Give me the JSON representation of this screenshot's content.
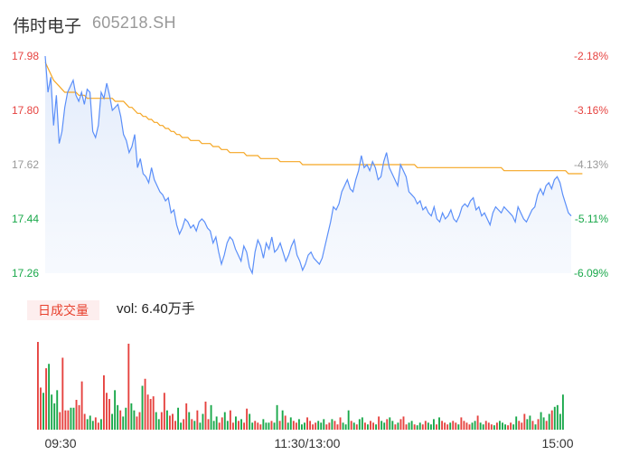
{
  "header": {
    "name": "伟时电子",
    "code": "605218.SH"
  },
  "volume_panel": {
    "tab_label": "日成交量",
    "vol_text": "vol: 6.40万手"
  },
  "colors": {
    "price": "#5b8ff9",
    "avg": "#f5a623",
    "up": "#e64340",
    "down": "#19a84a",
    "label_up": "#e64340",
    "label_down": "#19a84a",
    "label_mid": "#999999"
  },
  "chart_data": [
    {
      "type": "line",
      "y_ticks_left": [
        "17.98",
        "17.80",
        "17.62",
        "17.44",
        "17.26"
      ],
      "y_ticks_right": [
        "-2.18%",
        "-3.16%",
        "-4.13%",
        "-5.11%",
        "-6.09%"
      ],
      "ylim": [
        17.26,
        17.98
      ],
      "x_ticks": [
        "09:30",
        "11:30/13:00",
        "15:00"
      ],
      "series": [
        {
          "key": "price",
          "values": [
            17.98,
            17.86,
            17.91,
            17.75,
            17.85,
            17.69,
            17.73,
            17.81,
            17.86,
            17.88,
            17.9,
            17.85,
            17.83,
            17.86,
            17.82,
            17.87,
            17.86,
            17.73,
            17.71,
            17.75,
            17.86,
            17.84,
            17.89,
            17.85,
            17.8,
            17.81,
            17.82,
            17.78,
            17.72,
            17.7,
            17.66,
            17.68,
            17.72,
            17.61,
            17.64,
            17.59,
            17.58,
            17.56,
            17.61,
            17.57,
            17.55,
            17.53,
            17.52,
            17.5,
            17.51,
            17.46,
            17.47,
            17.42,
            17.39,
            17.41,
            17.44,
            17.43,
            17.41,
            17.42,
            17.4,
            17.43,
            17.44,
            17.43,
            17.41,
            17.4,
            17.36,
            17.38,
            17.33,
            17.29,
            17.32,
            17.36,
            17.38,
            17.37,
            17.34,
            17.32,
            17.3,
            17.35,
            17.33,
            17.28,
            17.26,
            17.33,
            17.37,
            17.35,
            17.31,
            17.36,
            17.34,
            17.38,
            17.33,
            17.34,
            17.36,
            17.33,
            17.3,
            17.32,
            17.35,
            17.37,
            17.32,
            17.3,
            17.27,
            17.29,
            17.32,
            17.33,
            17.31,
            17.3,
            17.29,
            17.31,
            17.35,
            17.39,
            17.43,
            17.48,
            17.47,
            17.49,
            17.53,
            17.55,
            17.57,
            17.54,
            17.53,
            17.57,
            17.6,
            17.65,
            17.61,
            17.62,
            17.6,
            17.63,
            17.61,
            17.57,
            17.58,
            17.63,
            17.66,
            17.61,
            17.59,
            17.57,
            17.55,
            17.62,
            17.6,
            17.58,
            17.53,
            17.52,
            17.51,
            17.49,
            17.5,
            17.47,
            17.48,
            17.46,
            17.45,
            17.48,
            17.44,
            17.43,
            17.46,
            17.44,
            17.45,
            17.47,
            17.44,
            17.43,
            17.45,
            17.48,
            17.49,
            17.48,
            17.5,
            17.51,
            17.47,
            17.48,
            17.45,
            17.46,
            17.44,
            17.42,
            17.46,
            17.48,
            17.47,
            17.46,
            17.48,
            17.47,
            17.46,
            17.45,
            17.43,
            17.48,
            17.46,
            17.44,
            17.43,
            17.45,
            17.47,
            17.48,
            17.52,
            17.54,
            17.52,
            17.55,
            17.56,
            17.54,
            17.57,
            17.58,
            17.56,
            17.52,
            17.49,
            17.46,
            17.45
          ],
          "color": "#5b8ff9"
        },
        {
          "key": "avg",
          "values": [
            17.96,
            17.94,
            17.92,
            17.9,
            17.89,
            17.88,
            17.87,
            17.86,
            17.86,
            17.86,
            17.86,
            17.86,
            17.85,
            17.85,
            17.85,
            17.84,
            17.84,
            17.84,
            17.84,
            17.84,
            17.84,
            17.84,
            17.84,
            17.84,
            17.84,
            17.83,
            17.83,
            17.83,
            17.83,
            17.82,
            17.81,
            17.81,
            17.8,
            17.79,
            17.79,
            17.78,
            17.78,
            17.77,
            17.77,
            17.76,
            17.76,
            17.75,
            17.75,
            17.74,
            17.74,
            17.73,
            17.73,
            17.72,
            17.72,
            17.71,
            17.71,
            17.71,
            17.7,
            17.7,
            17.7,
            17.7,
            17.69,
            17.69,
            17.69,
            17.69,
            17.68,
            17.68,
            17.68,
            17.67,
            17.67,
            17.67,
            17.66,
            17.66,
            17.66,
            17.66,
            17.66,
            17.66,
            17.65,
            17.65,
            17.65,
            17.65,
            17.65,
            17.64,
            17.64,
            17.64,
            17.64,
            17.64,
            17.64,
            17.64,
            17.63,
            17.63,
            17.63,
            17.63,
            17.63,
            17.63,
            17.63,
            17.63,
            17.62,
            17.62,
            17.62,
            17.62,
            17.62,
            17.62,
            17.62,
            17.62,
            17.62,
            17.62,
            17.62,
            17.62,
            17.62,
            17.62,
            17.62,
            17.62,
            17.62,
            17.62,
            17.62,
            17.62,
            17.62,
            17.62,
            17.62,
            17.62,
            17.62,
            17.62,
            17.62,
            17.62,
            17.62,
            17.62,
            17.62,
            17.62,
            17.62,
            17.62,
            17.62,
            17.62,
            17.62,
            17.62,
            17.62,
            17.62,
            17.62,
            17.61,
            17.61,
            17.61,
            17.61,
            17.61,
            17.61,
            17.61,
            17.61,
            17.61,
            17.61,
            17.61,
            17.61,
            17.61,
            17.61,
            17.61,
            17.61,
            17.61,
            17.61,
            17.61,
            17.61,
            17.61,
            17.61,
            17.61,
            17.61,
            17.61,
            17.61,
            17.61,
            17.61,
            17.61,
            17.61,
            17.61,
            17.6,
            17.6,
            17.6,
            17.6,
            17.6,
            17.6,
            17.6,
            17.6,
            17.6,
            17.6,
            17.6,
            17.6,
            17.6,
            17.6,
            17.6,
            17.6,
            17.6,
            17.6,
            17.6,
            17.6,
            17.6,
            17.6,
            17.6,
            17.59,
            17.59,
            17.59,
            17.59,
            17.59,
            17.59
          ],
          "color": "#f5a623"
        }
      ]
    },
    {
      "type": "bar",
      "title": "日成交量",
      "ylim": [
        0,
        100
      ],
      "volumes": [
        100,
        48,
        42,
        70,
        75,
        40,
        30,
        45,
        20,
        82,
        22,
        22,
        25,
        25,
        34,
        28,
        55,
        18,
        12,
        16,
        10,
        14,
        8,
        12,
        62,
        42,
        35,
        18,
        45,
        28,
        22,
        15,
        25,
        98,
        30,
        22,
        15,
        20,
        50,
        58,
        40,
        35,
        38,
        20,
        12,
        20,
        42,
        22,
        16,
        18,
        10,
        25,
        8,
        12,
        30,
        20,
        12,
        10,
        22,
        8,
        18,
        32,
        12,
        28,
        10,
        15,
        8,
        14,
        20,
        10,
        22,
        8,
        15,
        10,
        12,
        8,
        24,
        18,
        8,
        10,
        8,
        6,
        12,
        8,
        8,
        10,
        8,
        28,
        10,
        22,
        16,
        8,
        14,
        10,
        8,
        12,
        6,
        8,
        14,
        10,
        6,
        8,
        10,
        8,
        12,
        6,
        8,
        12,
        10,
        6,
        14,
        8,
        6,
        22,
        10,
        8,
        6,
        12,
        14,
        8,
        6,
        10,
        8,
        6,
        15,
        10,
        8,
        12,
        14,
        10,
        6,
        8,
        12,
        15,
        6,
        8,
        10,
        6,
        5,
        8,
        6,
        10,
        8,
        6,
        12,
        6,
        14,
        10,
        8,
        6,
        8,
        10,
        8,
        6,
        14,
        10,
        8,
        6,
        8,
        10,
        16,
        8,
        6,
        10,
        8,
        6,
        5,
        8,
        10,
        8,
        6,
        5,
        8,
        6,
        15,
        10,
        8,
        18,
        12,
        16,
        10,
        6,
        12,
        20,
        14,
        10,
        18,
        22,
        26,
        28,
        18,
        40
      ],
      "directions": [
        "u",
        "u",
        "d",
        "u",
        "d",
        "d",
        "d",
        "d",
        "u",
        "u",
        "u",
        "u",
        "d",
        "d",
        "u",
        "u",
        "u",
        "u",
        "d",
        "d",
        "d",
        "u",
        "u",
        "d",
        "u",
        "u",
        "u",
        "d",
        "d",
        "d",
        "u",
        "d",
        "d",
        "u",
        "d",
        "d",
        "u",
        "u",
        "d",
        "u",
        "u",
        "u",
        "u",
        "d",
        "d",
        "u",
        "u",
        "d",
        "u",
        "u",
        "u",
        "d",
        "d",
        "u",
        "u",
        "d",
        "u",
        "d",
        "u",
        "d",
        "d",
        "u",
        "u",
        "d",
        "d",
        "d",
        "u",
        "u",
        "d",
        "d",
        "u",
        "u",
        "d",
        "u",
        "d",
        "u",
        "u",
        "d",
        "d",
        "u",
        "u",
        "u",
        "d",
        "d",
        "d",
        "u",
        "d",
        "d",
        "u",
        "d",
        "u",
        "d",
        "d",
        "u",
        "u",
        "d",
        "d",
        "d",
        "u",
        "u",
        "u",
        "u",
        "d",
        "d",
        "d",
        "u",
        "u",
        "d",
        "u",
        "u",
        "u",
        "d",
        "d",
        "d",
        "u",
        "d",
        "u",
        "d",
        "d",
        "u",
        "d",
        "u",
        "u",
        "d",
        "u",
        "d",
        "d",
        "u",
        "d",
        "d",
        "u",
        "d",
        "u",
        "u",
        "u",
        "d",
        "d",
        "u",
        "d",
        "d",
        "u",
        "u",
        "d",
        "d",
        "d",
        "u",
        "d",
        "u",
        "u",
        "u",
        "d",
        "u",
        "u",
        "d",
        "u",
        "u",
        "u",
        "u",
        "d",
        "d",
        "u",
        "d",
        "d",
        "u",
        "u",
        "u",
        "d",
        "u",
        "d",
        "d",
        "d",
        "u",
        "u",
        "d",
        "d",
        "u",
        "u",
        "u",
        "d",
        "d",
        "u",
        "d",
        "u",
        "d",
        "d",
        "u",
        "d",
        "u"
      ]
    }
  ]
}
